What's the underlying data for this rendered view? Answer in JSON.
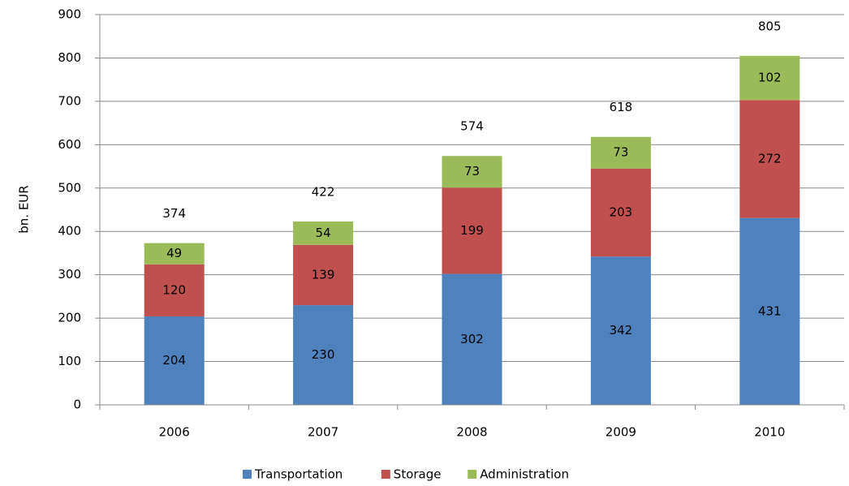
{
  "chart_data": {
    "type": "stacked-bar",
    "y_label": "bn. EUR",
    "categories": [
      "2006",
      "2007",
      "2008",
      "2009",
      "2010"
    ],
    "series": [
      {
        "name": "Transportation",
        "color": "#4f81bd",
        "values": [
          204,
          230,
          302,
          342,
          431
        ]
      },
      {
        "name": "Storage",
        "color": "#c0504d",
        "values": [
          120,
          139,
          199,
          203,
          272
        ]
      },
      {
        "name": "Administration",
        "color": "#9bbb59",
        "values": [
          49,
          54,
          73,
          73,
          102
        ]
      }
    ],
    "totals": [
      374,
      422,
      574,
      618,
      805
    ],
    "ylim": [
      0,
      900
    ],
    "yticks": [
      0,
      100,
      200,
      300,
      400,
      500,
      600,
      700,
      800,
      900
    ],
    "grid": true,
    "legend": "bottom"
  }
}
